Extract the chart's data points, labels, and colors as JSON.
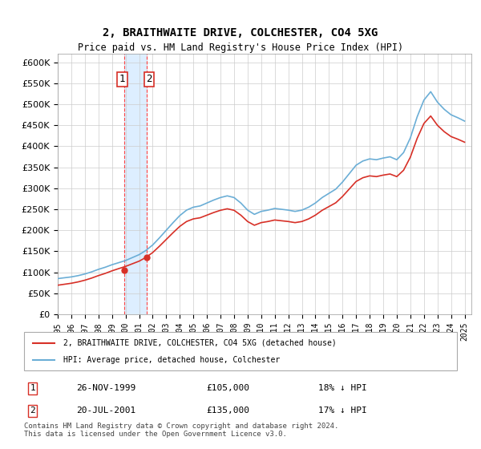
{
  "title": "2, BRAITHWAITE DRIVE, COLCHESTER, CO4 5XG",
  "subtitle": "Price paid vs. HM Land Registry's House Price Index (HPI)",
  "legend_line1": "2, BRAITHWAITE DRIVE, COLCHESTER, CO4 5XG (detached house)",
  "legend_line2": "HPI: Average price, detached house, Colchester",
  "transaction1_label": "1",
  "transaction1_date": "26-NOV-1999",
  "transaction1_price": "£105,000",
  "transaction1_hpi": "18% ↓ HPI",
  "transaction2_label": "2",
  "transaction2_date": "20-JUL-2001",
  "transaction2_price": "£135,000",
  "transaction2_hpi": "17% ↓ HPI",
  "footer": "Contains HM Land Registry data © Crown copyright and database right 2024.\nThis data is licensed under the Open Government Licence v3.0.",
  "hpi_color": "#6baed6",
  "price_color": "#d73027",
  "transaction_color": "#d73027",
  "highlight_color": "#ddeeff",
  "vline_color": "#ff4444",
  "ylim_min": 0,
  "ylim_max": 620000,
  "ytick_step": 50000,
  "xstart": 1995.0,
  "xend": 2025.5,
  "background_color": "#ffffff",
  "grid_color": "#cccccc"
}
